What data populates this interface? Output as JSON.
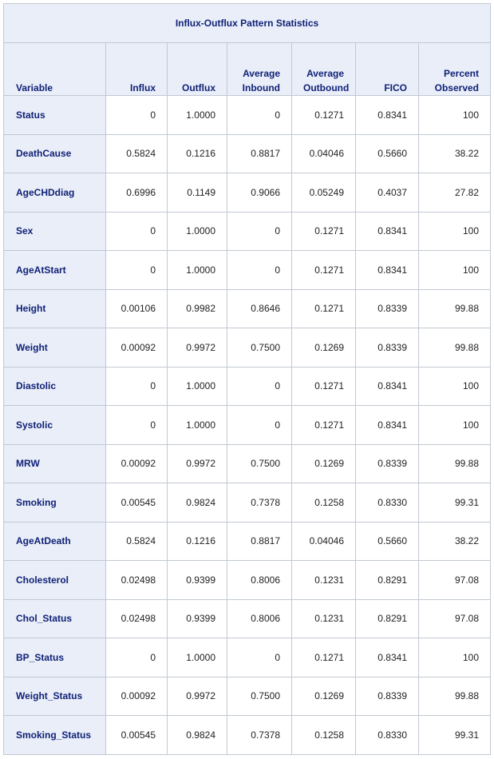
{
  "table": {
    "title": "Influx-Outflux Pattern Statistics",
    "columns": [
      {
        "line1": "",
        "line2": "Variable"
      },
      {
        "line1": "",
        "line2": "Influx"
      },
      {
        "line1": "",
        "line2": "Outflux"
      },
      {
        "line1": "Average",
        "line2": "Inbound"
      },
      {
        "line1": "Average",
        "line2": "Outbound"
      },
      {
        "line1": "",
        "line2": "FICO"
      },
      {
        "line1": "Percent",
        "line2": "Observed"
      }
    ],
    "rows": [
      [
        "Status",
        "0",
        "1.0000",
        "0",
        "0.1271",
        "0.8341",
        "100"
      ],
      [
        "DeathCause",
        "0.5824",
        "0.1216",
        "0.8817",
        "0.04046",
        "0.5660",
        "38.22"
      ],
      [
        "AgeCHDdiag",
        "0.6996",
        "0.1149",
        "0.9066",
        "0.05249",
        "0.4037",
        "27.82"
      ],
      [
        "Sex",
        "0",
        "1.0000",
        "0",
        "0.1271",
        "0.8341",
        "100"
      ],
      [
        "AgeAtStart",
        "0",
        "1.0000",
        "0",
        "0.1271",
        "0.8341",
        "100"
      ],
      [
        "Height",
        "0.00106",
        "0.9982",
        "0.8646",
        "0.1271",
        "0.8339",
        "99.88"
      ],
      [
        "Weight",
        "0.00092",
        "0.9972",
        "0.7500",
        "0.1269",
        "0.8339",
        "99.88"
      ],
      [
        "Diastolic",
        "0",
        "1.0000",
        "0",
        "0.1271",
        "0.8341",
        "100"
      ],
      [
        "Systolic",
        "0",
        "1.0000",
        "0",
        "0.1271",
        "0.8341",
        "100"
      ],
      [
        "MRW",
        "0.00092",
        "0.9972",
        "0.7500",
        "0.1269",
        "0.8339",
        "99.88"
      ],
      [
        "Smoking",
        "0.00545",
        "0.9824",
        "0.7378",
        "0.1258",
        "0.8330",
        "99.31"
      ],
      [
        "AgeAtDeath",
        "0.5824",
        "0.1216",
        "0.8817",
        "0.04046",
        "0.5660",
        "38.22"
      ],
      [
        "Cholesterol",
        "0.02498",
        "0.9399",
        "0.8006",
        "0.1231",
        "0.8291",
        "97.08"
      ],
      [
        "Chol_Status",
        "0.02498",
        "0.9399",
        "0.8006",
        "0.1231",
        "0.8291",
        "97.08"
      ],
      [
        "BP_Status",
        "0",
        "1.0000",
        "0",
        "0.1271",
        "0.8341",
        "100"
      ],
      [
        "Weight_Status",
        "0.00092",
        "0.9972",
        "0.7500",
        "0.1269",
        "0.8339",
        "99.88"
      ],
      [
        "Smoking_Status",
        "0.00545",
        "0.9824",
        "0.7378",
        "0.1258",
        "0.8330",
        "99.31"
      ]
    ]
  },
  "colors": {
    "header_bg": "#e9eef8",
    "header_text": "#112277",
    "border": "#c2c8d2",
    "cell_text": "#222222"
  }
}
